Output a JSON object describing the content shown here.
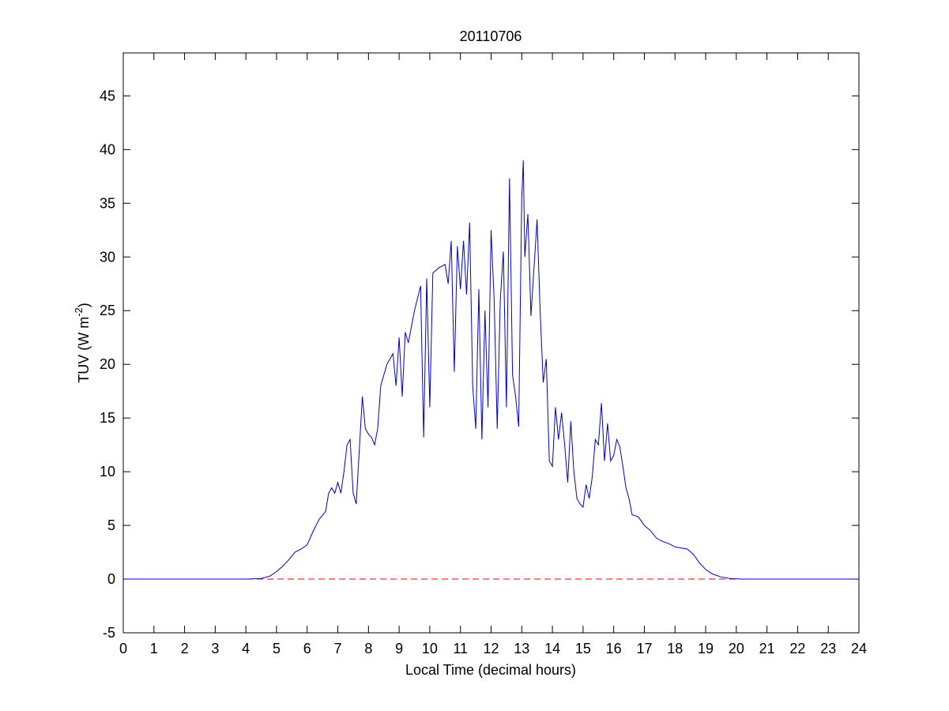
{
  "chart_data": {
    "type": "line",
    "title": "20110706",
    "x_label": "Local Time (decimal hours)",
    "y_label": {
      "text": "TUV (W m",
      "superscript": "-2",
      "suffix": ")"
    },
    "xlim": [
      0,
      24
    ],
    "ylim": [
      -5,
      49
    ],
    "xticks": [
      0,
      1,
      2,
      3,
      4,
      5,
      6,
      7,
      8,
      9,
      10,
      11,
      12,
      13,
      14,
      15,
      16,
      17,
      18,
      19,
      20,
      21,
      22,
      23,
      24
    ],
    "yticks": [
      -5,
      0,
      5,
      10,
      15,
      20,
      25,
      30,
      35,
      40,
      45
    ],
    "reference_line": {
      "value": 0,
      "color": "#ff0000",
      "dashed": true
    },
    "series": [
      {
        "color": "#0000cc",
        "x": [
          0,
          4,
          4.5,
          4.8,
          5.0,
          5.2,
          5.4,
          5.6,
          5.8,
          6.0,
          6.2,
          6.4,
          6.6,
          6.7,
          6.8,
          6.9,
          7.0,
          7.1,
          7.2,
          7.3,
          7.4,
          7.5,
          7.6,
          7.7,
          7.8,
          7.9,
          8.0,
          8.1,
          8.2,
          8.3,
          8.4,
          8.6,
          8.8,
          8.9,
          9.0,
          9.1,
          9.2,
          9.3,
          9.4,
          9.5,
          9.7,
          9.8,
          9.9,
          10.0,
          10.1,
          10.3,
          10.5,
          10.6,
          10.7,
          10.8,
          10.9,
          11.0,
          11.1,
          11.2,
          11.3,
          11.4,
          11.5,
          11.6,
          11.7,
          11.8,
          11.9,
          12.0,
          12.1,
          12.2,
          12.3,
          12.4,
          12.5,
          12.6,
          12.7,
          12.8,
          12.9,
          13.0,
          13.05,
          13.1,
          13.2,
          13.3,
          13.4,
          13.5,
          13.6,
          13.7,
          13.8,
          13.9,
          14.0,
          14.1,
          14.2,
          14.3,
          14.4,
          14.5,
          14.6,
          14.7,
          14.8,
          14.9,
          15.0,
          15.1,
          15.2,
          15.3,
          15.4,
          15.5,
          15.6,
          15.7,
          15.8,
          15.9,
          16.0,
          16.1,
          16.2,
          16.3,
          16.4,
          16.5,
          16.6,
          16.8,
          17.0,
          17.2,
          17.4,
          17.6,
          17.8,
          18.0,
          18.2,
          18.4,
          18.6,
          18.8,
          19.0,
          19.2,
          19.5,
          19.8,
          20.2,
          24
        ],
        "values": [
          0,
          0,
          0.05,
          0.3,
          0.7,
          1.2,
          1.8,
          2.5,
          2.8,
          3.2,
          4.5,
          5.6,
          6.3,
          8.0,
          8.5,
          8.0,
          9.0,
          8.0,
          10.0,
          12.5,
          13.0,
          8.0,
          7.0,
          12,
          17.0,
          14,
          13.5,
          13.2,
          12.5,
          14,
          18,
          20,
          21,
          18,
          22.5,
          17,
          23,
          22,
          23.5,
          25,
          27.3,
          13.2,
          28,
          16,
          28.5,
          29,
          29.3,
          27.5,
          31.5,
          19.3,
          31,
          27,
          31.5,
          26.5,
          33.2,
          18,
          14,
          27,
          13,
          25,
          16,
          32.5,
          26,
          14,
          26,
          30.5,
          16,
          37.3,
          19,
          17,
          14.2,
          35.5,
          39,
          30,
          34,
          24.5,
          29,
          33.5,
          25,
          18.3,
          20.5,
          11,
          10.5,
          16,
          13,
          15.5,
          12.5,
          9.0,
          14.7,
          10,
          7.5,
          7.0,
          6.7,
          8.8,
          7.5,
          9.5,
          13,
          12.5,
          16.4,
          11,
          14.5,
          11,
          11.5,
          13,
          12.3,
          10.5,
          8.5,
          7.5,
          6,
          5.8,
          5.0,
          4.5,
          3.8,
          3.5,
          3.3,
          3.0,
          2.9,
          2.8,
          2.3,
          1.5,
          0.9,
          0.5,
          0.2,
          0.05,
          0,
          0
        ]
      }
    ]
  }
}
